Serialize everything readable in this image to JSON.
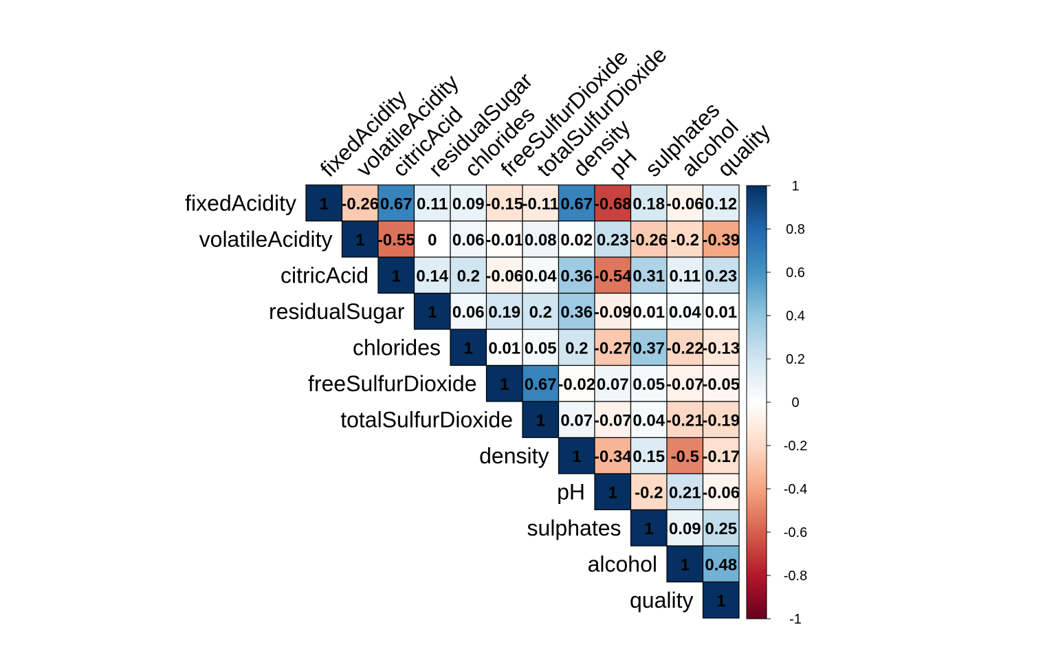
{
  "chart_data": {
    "type": "heatmap",
    "variables": [
      "fixedAcidity",
      "volatileAcidity",
      "citricAcid",
      "residualSugar",
      "chlorides",
      "freeSulfurDioxide",
      "totalSulfurDioxide",
      "density",
      "pH",
      "sulphates",
      "alcohol",
      "quality"
    ],
    "values": [
      [
        "1",
        "-0.26",
        "0.67",
        "0.11",
        "0.09",
        "-0.15",
        "-0.11",
        "0.67",
        "-0.68",
        "0.18",
        "-0.06",
        "0.12"
      ],
      [
        null,
        "1",
        "-0.55",
        "0",
        "0.06",
        "-0.01",
        "0.08",
        "0.02",
        "0.23",
        "-0.26",
        "-0.2",
        "-0.39"
      ],
      [
        null,
        null,
        "1",
        "0.14",
        "0.2",
        "-0.06",
        "0.04",
        "0.36",
        "-0.54",
        "0.31",
        "0.11",
        "0.23"
      ],
      [
        null,
        null,
        null,
        "1",
        "0.06",
        "0.19",
        "0.2",
        "0.36",
        "-0.09",
        "0.01",
        "0.04",
        "0.01"
      ],
      [
        null,
        null,
        null,
        null,
        "1",
        "0.01",
        "0.05",
        "0.2",
        "-0.27",
        "0.37",
        "-0.22",
        "-0.13"
      ],
      [
        null,
        null,
        null,
        null,
        null,
        "1",
        "0.67",
        "-0.02",
        "0.07",
        "0.05",
        "-0.07",
        "-0.05"
      ],
      [
        null,
        null,
        null,
        null,
        null,
        null,
        "1",
        "0.07",
        "-0.07",
        "0.04",
        "-0.21",
        "-0.19"
      ],
      [
        null,
        null,
        null,
        null,
        null,
        null,
        null,
        "1",
        "-0.34",
        "0.15",
        "-0.5",
        "-0.17"
      ],
      [
        null,
        null,
        null,
        null,
        null,
        null,
        null,
        null,
        "1",
        "-0.2",
        "0.21",
        "-0.06"
      ],
      [
        null,
        null,
        null,
        null,
        null,
        null,
        null,
        null,
        null,
        "1",
        "0.09",
        "0.25"
      ],
      [
        null,
        null,
        null,
        null,
        null,
        null,
        null,
        null,
        null,
        null,
        "1",
        "0.48"
      ],
      [
        null,
        null,
        null,
        null,
        null,
        null,
        null,
        null,
        null,
        null,
        null,
        "1"
      ]
    ],
    "colorbar": {
      "ticks": [
        "1",
        "0.8",
        "0.6",
        "0.4",
        "0.2",
        "0",
        "-0.2",
        "-0.4",
        "-0.6",
        "-0.8",
        "-1"
      ],
      "range": [
        -1,
        1
      ]
    },
    "colors": {
      "strong_positive": "#053061",
      "positive": "#2166ac",
      "light_positive": "#92c5de",
      "neutral": "#ffffff",
      "light_negative": "#f4a582",
      "negative": "#d6604d",
      "strong_negative": "#67001f"
    }
  }
}
